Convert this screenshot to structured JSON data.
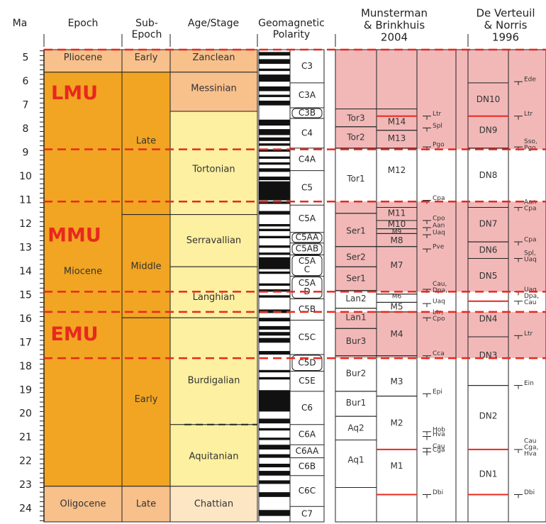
{
  "headers": {
    "ma": "Ma",
    "epoch": "Epoch",
    "subepoch": [
      "Sub-",
      "Epoch"
    ],
    "stage": "Age/Stage",
    "polarity": [
      "Geomagnetic",
      "Polarity"
    ],
    "munsterman": [
      "Munsterman",
      "& Brinkhuis",
      "2004"
    ],
    "deverteuil": [
      "De Verteuil",
      "& Norris",
      "1996"
    ]
  },
  "colors": {
    "pink_band": "#f2b8b8",
    "red_dash": "#e8281e",
    "unit_label": "#e8281e",
    "zone_red_line": "#e8281e"
  },
  "ma_ticks": [
    "5",
    "6",
    "7",
    "8",
    "9",
    "10",
    "11",
    "12",
    "13",
    "14",
    "15",
    "16",
    "17",
    "18",
    "19",
    "20",
    "21",
    "22",
    "23",
    "24"
  ],
  "units": [
    {
      "label": "LMU",
      "top": 4.65,
      "bottom": 8.85
    },
    {
      "label": "MMU",
      "top": 11.05,
      "bottom": 14.85
    },
    {
      "label": "EMU",
      "top": 15.7,
      "bottom": 17.65
    }
  ],
  "epochs": [
    {
      "top": 4.65,
      "bottom": 5.6,
      "label": "Pliocene",
      "color": "#f8c08b",
      "labelAt": 5.0
    },
    {
      "top": 5.6,
      "bottom": 23.05,
      "label": "Miocene",
      "color": "#f2a522",
      "labelAt": 14.0
    },
    {
      "top": 23.05,
      "bottom": 24.55,
      "label": "Oligocene",
      "color": "#f8c08b",
      "labelAt": 23.8
    }
  ],
  "subepochs": [
    {
      "top": 4.65,
      "bottom": 5.6,
      "label": "Early",
      "color": "#f8c08b",
      "labelAt": 5.0
    },
    {
      "top": 5.6,
      "bottom": 11.6,
      "label": "Late",
      "color": "#f2a522",
      "labelAt": 8.5
    },
    {
      "top": 11.6,
      "bottom": 15.95,
      "label": "Middle",
      "color": "#f2a522",
      "labelAt": 13.8
    },
    {
      "top": 15.95,
      "bottom": 23.05,
      "label": "Early",
      "color": "#f2a522",
      "labelAt": 19.4
    },
    {
      "top": 23.05,
      "bottom": 24.55,
      "label": "Late",
      "color": "#f8c08b",
      "labelAt": 23.8
    }
  ],
  "stages": [
    {
      "top": 4.65,
      "bottom": 5.6,
      "label": "Zanclean",
      "color": "#f8c08b",
      "labelAt": 5.0
    },
    {
      "top": 5.6,
      "bottom": 7.25,
      "label": "Messinian",
      "color": "#f8c08b",
      "labelAt": 6.3
    },
    {
      "top": 7.25,
      "bottom": 11.6,
      "label": "Tortonian",
      "color": "#fdf0a0",
      "labelAt": 9.7
    },
    {
      "top": 11.6,
      "bottom": 13.8,
      "label": "Serravallian",
      "color": "#fdf0a0",
      "labelAt": 12.7
    },
    {
      "top": 13.8,
      "bottom": 15.95,
      "label": "Langhian",
      "color": "#fdf0a0",
      "labelAt": 15.1
    },
    {
      "top": 15.95,
      "bottom": 20.45,
      "label": "Burdigalian",
      "color": "#fdf0a0",
      "labelAt": 18.6
    },
    {
      "top": 20.45,
      "bottom": 23.05,
      "label": "Aquitanian",
      "color": "#fdf0a0",
      "labelAt": 21.8
    },
    {
      "top": 23.05,
      "bottom": 24.55,
      "label": "Chattian",
      "color": "#fde6c4",
      "labelAt": 23.8
    }
  ],
  "chrons": [
    {
      "top": 4.65,
      "bottom": 6.05,
      "label": "C3"
    },
    {
      "top": 6.05,
      "bottom": 7.1,
      "label": "C3A"
    },
    {
      "top": 7.1,
      "bottom": 7.55,
      "label": "C3B",
      "box": true
    },
    {
      "top": 7.55,
      "bottom": 8.8,
      "label": "C4"
    },
    {
      "top": 8.8,
      "bottom": 9.75,
      "label": "C4A"
    },
    {
      "top": 9.75,
      "bottom": 11.2,
      "label": "C5"
    },
    {
      "top": 11.2,
      "bottom": 12.35,
      "label": "C5A"
    },
    {
      "top": 12.35,
      "bottom": 12.8,
      "label": "C5AA",
      "box": true
    },
    {
      "top": 12.8,
      "bottom": 13.3,
      "label": "C5AB",
      "box": true
    },
    {
      "top": 13.3,
      "bottom": 14.2,
      "label": "C5A\nC",
      "box": true
    },
    {
      "top": 14.2,
      "bottom": 15.15,
      "label": "C5A\nD",
      "box": true
    },
    {
      "top": 15.15,
      "bottom": 16.05,
      "label": "C5B"
    },
    {
      "top": 16.05,
      "bottom": 17.5,
      "label": "C5C"
    },
    {
      "top": 17.5,
      "bottom": 18.2,
      "label": "C5D",
      "box": true
    },
    {
      "top": 18.2,
      "bottom": 19.05,
      "label": "C5E"
    },
    {
      "top": 19.05,
      "bottom": 20.45,
      "label": "C6"
    },
    {
      "top": 20.45,
      "bottom": 21.3,
      "label": "C6A"
    },
    {
      "top": 21.3,
      "bottom": 21.85,
      "label": "C6AA"
    },
    {
      "top": 21.85,
      "bottom": 22.6,
      "label": "C6B"
    },
    {
      "top": 22.6,
      "bottom": 23.9,
      "label": "C6C"
    },
    {
      "top": 23.9,
      "bottom": 24.55,
      "label": "C7"
    }
  ],
  "polarity_black": [
    [
      4.75,
      4.9
    ],
    [
      5.05,
      5.25
    ],
    [
      5.45,
      5.55
    ],
    [
      5.7,
      6.0
    ],
    [
      6.2,
      6.4
    ],
    [
      6.55,
      6.65
    ],
    [
      6.8,
      7.0
    ],
    [
      7.6,
      7.85
    ],
    [
      8.0,
      8.25
    ],
    [
      8.35,
      8.5
    ],
    [
      8.6,
      8.7
    ],
    [
      8.85,
      8.95
    ],
    [
      9.15,
      9.25
    ],
    [
      9.4,
      9.5
    ],
    [
      9.65,
      9.8
    ],
    [
      10.0,
      10.15
    ],
    [
      10.2,
      11.0
    ],
    [
      11.05,
      11.15
    ],
    [
      11.45,
      11.6
    ],
    [
      12.0,
      12.1
    ],
    [
      12.2,
      12.3
    ],
    [
      12.5,
      12.6
    ],
    [
      12.9,
      13.0
    ],
    [
      13.2,
      13.3
    ],
    [
      13.4,
      13.9
    ],
    [
      14.0,
      14.1
    ],
    [
      14.5,
      14.6
    ],
    [
      14.75,
      14.85
    ],
    [
      15.0,
      15.1
    ],
    [
      15.6,
      15.75
    ],
    [
      15.95,
      16.1
    ],
    [
      16.3,
      16.45
    ],
    [
      16.55,
      16.7
    ],
    [
      16.8,
      17.0
    ],
    [
      17.35,
      17.5
    ],
    [
      18.15,
      18.25
    ],
    [
      18.45,
      18.55
    ],
    [
      19.0,
      19.9
    ],
    [
      20.2,
      20.4
    ],
    [
      20.6,
      20.7
    ],
    [
      21.0,
      21.1
    ],
    [
      21.3,
      21.5
    ],
    [
      21.7,
      21.85
    ],
    [
      22.1,
      22.25
    ],
    [
      22.4,
      22.6
    ],
    [
      22.8,
      22.95
    ],
    [
      23.3,
      23.5
    ],
    [
      24.05,
      24.3
    ]
  ],
  "mb_zones": [
    {
      "top": 7.15,
      "bottom": 7.9,
      "label": "Tor3",
      "labelAt": 7.55
    },
    {
      "top": 7.9,
      "bottom": 8.8,
      "label": "Tor2",
      "labelAt": 8.35
    },
    {
      "top": 8.8,
      "bottom": 11.55,
      "label": "Tor1",
      "labelAt": 10.1
    },
    {
      "top": 11.55,
      "bottom": 12.95,
      "label": "Ser1",
      "labelAt": 12.3
    },
    {
      "top": 12.95,
      "bottom": 13.8,
      "label": "Ser2",
      "labelAt": 13.4
    },
    {
      "top": 13.8,
      "bottom": 14.8,
      "label": "Ser1",
      "labelAt": 14.3
    },
    {
      "top": 14.8,
      "bottom": 15.55,
      "label": "Lan2",
      "labelAt": 15.15
    },
    {
      "top": 15.55,
      "bottom": 16.4,
      "label": "Lan1",
      "labelAt": 15.95
    },
    {
      "top": 16.4,
      "bottom": 17.55,
      "label": "Bur3",
      "labelAt": 16.95
    },
    {
      "top": 17.55,
      "bottom": 19.05,
      "label": "Bur2",
      "labelAt": 18.3
    },
    {
      "top": 19.05,
      "bottom": 20.1,
      "label": "Bur1",
      "labelAt": 19.55
    },
    {
      "top": 20.1,
      "bottom": 21.1,
      "label": "Aq2",
      "labelAt": 20.6
    },
    {
      "top": 21.1,
      "bottom": 23.1,
      "label": "Aq1",
      "labelAt": 21.95
    }
  ],
  "m_zones": [
    {
      "top": 7.15,
      "bottom": 8.05,
      "label": "M14",
      "labelAt": 7.7
    },
    {
      "top": 8.05,
      "bottom": 8.8,
      "label": "M13",
      "labelAt": 8.4
    },
    {
      "top": 8.8,
      "bottom": 11.3,
      "label": "M12",
      "labelAt": 9.75
    },
    {
      "top": 11.3,
      "bottom": 11.85,
      "label": "M11",
      "labelAt": 11.55
    },
    {
      "top": 11.85,
      "bottom": 12.2,
      "label": "M10",
      "labelAt": 12.02
    },
    {
      "top": 12.2,
      "bottom": 12.4,
      "label": "M9",
      "labelAt": 12.33,
      "small": true
    },
    {
      "top": 12.4,
      "bottom": 12.95,
      "label": "M8",
      "labelAt": 12.7
    },
    {
      "top": 12.95,
      "bottom": 14.95,
      "label": "M7",
      "labelAt": 13.75
    },
    {
      "top": 14.95,
      "bottom": 15.3,
      "label": "M6",
      "labelAt": 15.05,
      "small": true
    },
    {
      "top": 15.3,
      "bottom": 15.7,
      "label": "M5",
      "labelAt": 15.5
    },
    {
      "top": 15.7,
      "bottom": 17.55,
      "label": "M4",
      "labelAt": 16.65
    },
    {
      "top": 17.55,
      "bottom": 19.25,
      "label": "M3",
      "labelAt": 18.65
    },
    {
      "top": 19.25,
      "bottom": 21.5,
      "label": "M2",
      "labelAt": 20.4
    },
    {
      "top": 21.5,
      "bottom": 24.55,
      "label": "M1",
      "labelAt": 22.2
    }
  ],
  "m_red_lines": [
    7.45,
    21.5,
    23.4
  ],
  "mb_events": [
    {
      "at": 7.45,
      "label": "Ltr"
    },
    {
      "at": 7.95,
      "label": "Spl"
    },
    {
      "at": 8.75,
      "label": "Pgo"
    },
    {
      "at": 11.0,
      "label": "Cpa"
    },
    {
      "at": 11.85,
      "label": "Cpo"
    },
    {
      "at": 12.15,
      "label": "Aan"
    },
    {
      "at": 12.45,
      "label": "Uaq"
    },
    {
      "at": 13.05,
      "label": "Pve"
    },
    {
      "at": 14.75,
      "label": "Cau,\nDpa,"
    },
    {
      "at": 15.35,
      "label": "Uaq"
    },
    {
      "at": 15.95,
      "label": "Ltr,\nCpo"
    },
    {
      "at": 17.55,
      "label": "Cca"
    },
    {
      "at": 19.15,
      "label": "Epi"
    },
    {
      "at": 20.75,
      "label": "Hob"
    },
    {
      "at": 20.95,
      "label": "Hva"
    },
    {
      "at": 21.45,
      "label": "Cau"
    },
    {
      "at": 21.6,
      "label": "Cga"
    },
    {
      "at": 23.4,
      "label": "Dbi"
    }
  ],
  "dn_zones": [
    {
      "top": 6.05,
      "bottom": 7.45,
      "label": "DN10",
      "labelAt": 6.75
    },
    {
      "top": 7.45,
      "bottom": 8.8,
      "label": "DN9",
      "labelAt": 8.05
    },
    {
      "top": 8.8,
      "bottom": 11.3,
      "label": "DN8",
      "labelAt": 9.95
    },
    {
      "top": 11.3,
      "bottom": 12.75,
      "label": "DN7",
      "labelAt": 12.0
    },
    {
      "top": 12.75,
      "bottom": 13.45,
      "label": "DN6",
      "labelAt": 13.1
    },
    {
      "top": 13.45,
      "bottom": 15.25,
      "label": "DN5",
      "labelAt": 14.2
    },
    {
      "top": 15.25,
      "bottom": 16.75,
      "label": "DN4",
      "labelAt": 16.0
    },
    {
      "top": 16.75,
      "bottom": 18.8,
      "label": "DN3",
      "labelAt": 17.55
    },
    {
      "top": 18.8,
      "bottom": 21.5,
      "label": "DN2",
      "labelAt": 20.1
    },
    {
      "top": 21.5,
      "bottom": 24.55,
      "label": "DN1",
      "labelAt": 22.55
    }
  ],
  "dn_red_lines": [
    7.45,
    15.25,
    21.5,
    23.4
  ],
  "dn_events": [
    {
      "at": 6.0,
      "label": "Ede"
    },
    {
      "at": 7.45,
      "label": "Ltr"
    },
    {
      "at": 8.75,
      "label": "Sso,\nPgo"
    },
    {
      "at": 11.3,
      "label": "Aan\nCpa"
    },
    {
      "at": 12.75,
      "label": "Cpa"
    },
    {
      "at": 13.45,
      "label": "Spl,\nUaq"
    },
    {
      "at": 14.85,
      "label": "Uaq"
    },
    {
      "at": 15.25,
      "label": "Dpa,\nCau"
    },
    {
      "at": 16.7,
      "label": "Ltr"
    },
    {
      "at": 18.8,
      "label": "Ein"
    },
    {
      "at": 21.5,
      "label": "Cau\nCga,\nHva"
    },
    {
      "at": 23.4,
      "label": "Dbi"
    }
  ]
}
